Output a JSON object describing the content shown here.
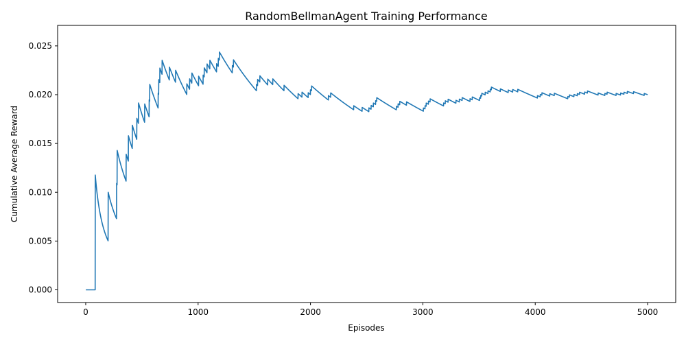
{
  "chart_data": {
    "type": "line",
    "title": "RandomBellmanAgent Training Performance",
    "xlabel": "Episodes",
    "ylabel": "Cumulative Average Reward",
    "xlim": [
      -250,
      5250
    ],
    "ylim": [
      -0.0013,
      0.0271
    ],
    "xticks": [
      0,
      1000,
      2000,
      3000,
      4000,
      5000
    ],
    "xtick_labels": [
      "0",
      "1000",
      "2000",
      "3000",
      "4000",
      "5000"
    ],
    "yticks": [
      0.0,
      0.005,
      0.01,
      0.015,
      0.02,
      0.025
    ],
    "ytick_labels": [
      "0.000",
      "0.005",
      "0.010",
      "0.015",
      "0.020",
      "0.025"
    ],
    "grid": false,
    "line_color": "#1f77b4",
    "reward_episodes": [
      85,
      200,
      275,
      280,
      360,
      380,
      415,
      455,
      470,
      525,
      565,
      570,
      645,
      650,
      660,
      680,
      745,
      800,
      900,
      925,
      945,
      1005,
      1045,
      1055,
      1080,
      1105,
      1165,
      1180,
      1190,
      1305,
      1315,
      1520,
      1530,
      1550,
      1620,
      1665,
      1765,
      1890,
      1925,
      1980,
      2000,
      2010,
      2160,
      2180,
      2385,
      2460,
      2520,
      2540,
      2560,
      2580,
      2590,
      2765,
      2780,
      2795,
      2855,
      3005,
      3020,
      3030,
      3050,
      3065,
      3185,
      3200,
      3225,
      3295,
      3325,
      3350,
      3420,
      3440,
      3505,
      3515,
      3525,
      3555,
      3580,
      3600,
      3610,
      3690,
      3760,
      3800,
      3845,
      4020,
      4045,
      4060,
      4130,
      4170,
      4290,
      4305,
      4345,
      4375,
      4395,
      4440,
      4465,
      4560,
      4620,
      4640,
      4720,
      4760,
      4790,
      4820,
      4875,
      4970
    ]
  }
}
